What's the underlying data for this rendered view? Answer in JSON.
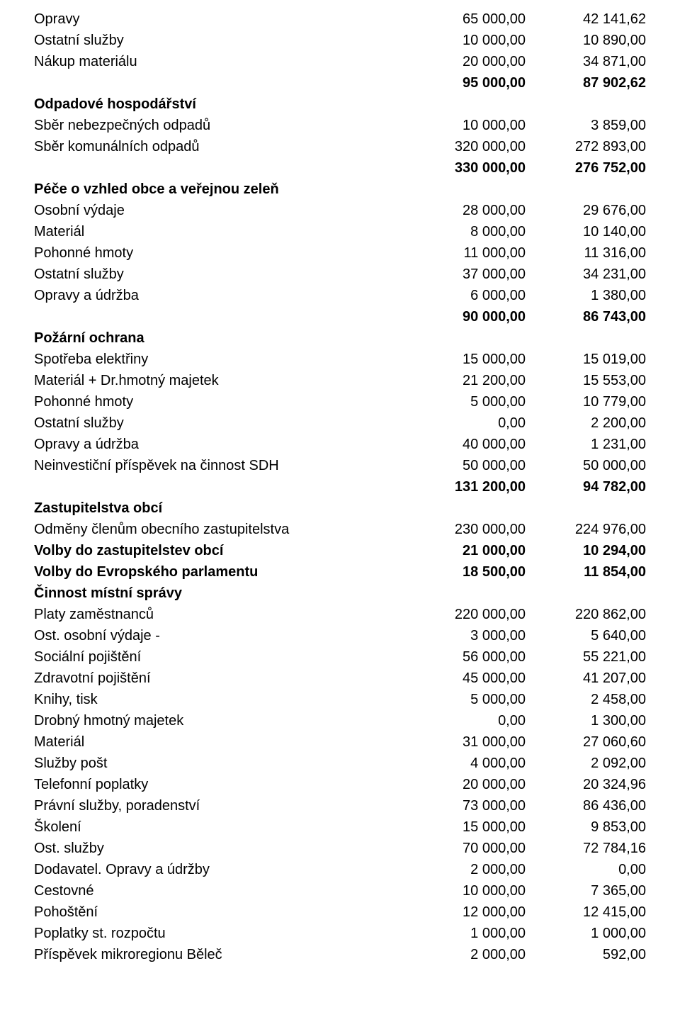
{
  "rows": [
    {
      "label": "Opravy",
      "c1": "65 000,00",
      "c2": "42 141,62",
      "bold": false
    },
    {
      "label": "Ostatní služby",
      "c1": "10 000,00",
      "c2": "10 890,00",
      "bold": false
    },
    {
      "label": "Nákup materiálu",
      "c1": "20 000,00",
      "c2": "34 871,00",
      "bold": false
    },
    {
      "label": "",
      "c1": "95 000,00",
      "c2": "87 902,62",
      "bold": true
    },
    {
      "label": "Odpadové hospodářství",
      "c1": "",
      "c2": "",
      "bold": true
    },
    {
      "label": "Sběr nebezpečných odpadů",
      "c1": "10 000,00",
      "c2": "3 859,00",
      "bold": false
    },
    {
      "label": "Sběr komunálních odpadů",
      "c1": "320 000,00",
      "c2": "272 893,00",
      "bold": false
    },
    {
      "label": "",
      "c1": "330 000,00",
      "c2": "276 752,00",
      "bold": true
    },
    {
      "label": "Péče o vzhled obce a veřejnou zeleň",
      "c1": "",
      "c2": "",
      "bold": true
    },
    {
      "label": "Osobní výdaje",
      "c1": "28 000,00",
      "c2": "29 676,00",
      "bold": false
    },
    {
      "label": "Materiál",
      "c1": "8 000,00",
      "c2": "10 140,00",
      "bold": false
    },
    {
      "label": "Pohonné hmoty",
      "c1": "11 000,00",
      "c2": "11 316,00",
      "bold": false
    },
    {
      "label": "Ostatní služby",
      "c1": "37 000,00",
      "c2": "34 231,00",
      "bold": false
    },
    {
      "label": "Opravy a údržba",
      "c1": "6 000,00",
      "c2": "1 380,00",
      "bold": false
    },
    {
      "label": "",
      "c1": "90 000,00",
      "c2": "86 743,00",
      "bold": true
    },
    {
      "label": "Požární ochrana",
      "c1": "",
      "c2": "",
      "bold": true
    },
    {
      "label": "Spotřeba elektřiny",
      "c1": "15 000,00",
      "c2": "15 019,00",
      "bold": false
    },
    {
      "label": "Materiál + Dr.hmotný majetek",
      "c1": "21 200,00",
      "c2": "15 553,00",
      "bold": false
    },
    {
      "label": "Pohonné hmoty",
      "c1": "5 000,00",
      "c2": "10 779,00",
      "bold": false
    },
    {
      "label": "Ostatní služby",
      "c1": "0,00",
      "c2": "2 200,00",
      "bold": false
    },
    {
      "label": "Opravy a údržba",
      "c1": "40 000,00",
      "c2": "1 231,00",
      "bold": false
    },
    {
      "label": "Neinvestiční příspěvek na činnost SDH",
      "c1": "50 000,00",
      "c2": "50 000,00",
      "bold": false
    },
    {
      "label": "",
      "c1": "131 200,00",
      "c2": "94 782,00",
      "bold": true
    },
    {
      "label": "",
      "c1": "",
      "c2": "",
      "bold": false
    },
    {
      "label": "Zastupitelstva obcí",
      "c1": "",
      "c2": "",
      "bold": true
    },
    {
      "label": "Odměny členům obecního zastupitelstva",
      "c1": "230 000,00",
      "c2": "224 976,00",
      "bold": false
    },
    {
      "label": "",
      "c1": "",
      "c2": "",
      "bold": false
    },
    {
      "label": "Volby do zastupitelstev obcí",
      "c1": "21 000,00",
      "c2": "10 294,00",
      "bold": true
    },
    {
      "label": "",
      "c1": "",
      "c2": "",
      "bold": false
    },
    {
      "label": "Volby do Evropského parlamentu",
      "c1": "18 500,00",
      "c2": "11 854,00",
      "bold": true
    },
    {
      "label": "",
      "c1": "",
      "c2": "",
      "bold": false
    },
    {
      "label": "Činnost místní správy",
      "c1": "",
      "c2": "",
      "bold": true
    },
    {
      "label": "Platy zaměstnanců",
      "c1": "220 000,00",
      "c2": "220 862,00",
      "bold": false
    },
    {
      "label": "Ost. osobní výdaje -",
      "c1": "3 000,00",
      "c2": "5 640,00",
      "bold": false
    },
    {
      "label": "Sociální pojištění",
      "c1": "56 000,00",
      "c2": "55 221,00",
      "bold": false
    },
    {
      "label": "Zdravotní pojištění",
      "c1": "45 000,00",
      "c2": "41 207,00",
      "bold": false
    },
    {
      "label": "Knihy, tisk",
      "c1": "5 000,00",
      "c2": "2 458,00",
      "bold": false
    },
    {
      "label": "Drobný hmotný majetek",
      "c1": "0,00",
      "c2": "1 300,00",
      "bold": false
    },
    {
      "label": "Materiál",
      "c1": "31 000,00",
      "c2": "27 060,60",
      "bold": false
    },
    {
      "label": "Služby pošt",
      "c1": "4 000,00",
      "c2": "2 092,00",
      "bold": false
    },
    {
      "label": "Telefonní poplatky",
      "c1": "20 000,00",
      "c2": "20 324,96",
      "bold": false
    },
    {
      "label": "Právní služby, poradenství",
      "c1": "73 000,00",
      "c2": "86 436,00",
      "bold": false
    },
    {
      "label": "Školení",
      "c1": "15 000,00",
      "c2": "9 853,00",
      "bold": false
    },
    {
      "label": "Ost. služby",
      "c1": "70 000,00",
      "c2": "72 784,16",
      "bold": false
    },
    {
      "label": "Dodavatel. Opravy a údržby",
      "c1": "2 000,00",
      "c2": "0,00",
      "bold": false
    },
    {
      "label": "Cestovné",
      "c1": "10 000,00",
      "c2": "7 365,00",
      "bold": false
    },
    {
      "label": "Pohoštění",
      "c1": "12 000,00",
      "c2": "12 415,00",
      "bold": false
    },
    {
      "label": "Poplatky st. rozpočtu",
      "c1": "1 000,00",
      "c2": "1 000,00",
      "bold": false
    },
    {
      "label": "Příspěvek mikroregionu Běleč",
      "c1": "2 000,00",
      "c2": "592,00",
      "bold": false
    }
  ]
}
